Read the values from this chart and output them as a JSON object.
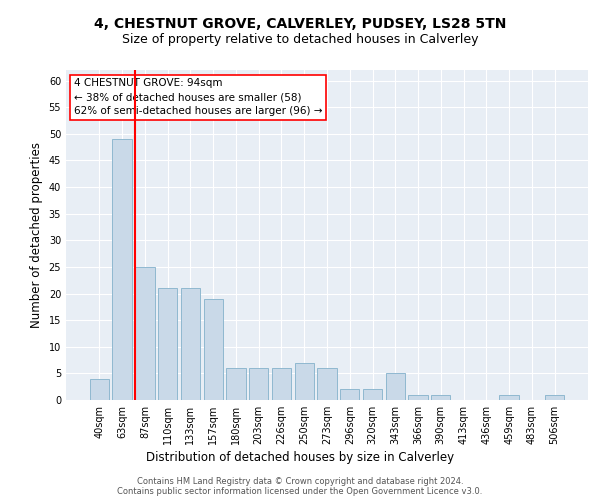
{
  "title1": "4, CHESTNUT GROVE, CALVERLEY, PUDSEY, LS28 5TN",
  "title2": "Size of property relative to detached houses in Calverley",
  "xlabel": "Distribution of detached houses by size in Calverley",
  "ylabel": "Number of detached properties",
  "annotation_line1": "4 CHESTNUT GROVE: 94sqm",
  "annotation_line2": "← 38% of detached houses are smaller (58)",
  "annotation_line3": "62% of semi-detached houses are larger (96) →",
  "categories": [
    "40sqm",
    "63sqm",
    "87sqm",
    "110sqm",
    "133sqm",
    "157sqm",
    "180sqm",
    "203sqm",
    "226sqm",
    "250sqm",
    "273sqm",
    "296sqm",
    "320sqm",
    "343sqm",
    "366sqm",
    "390sqm",
    "413sqm",
    "436sqm",
    "459sqm",
    "483sqm",
    "506sqm"
  ],
  "values": [
    4,
    49,
    25,
    21,
    21,
    19,
    6,
    6,
    6,
    7,
    6,
    2,
    2,
    5,
    1,
    1,
    0,
    0,
    1,
    0,
    1
  ],
  "bar_color": "#c9d9e8",
  "bar_edge_color": "#8fb8d0",
  "red_line_index": 2,
  "bar_width": 0.85,
  "ylim": [
    0,
    62
  ],
  "yticks": [
    0,
    5,
    10,
    15,
    20,
    25,
    30,
    35,
    40,
    45,
    50,
    55,
    60
  ],
  "bg_color": "#e8eef5",
  "grid_color": "#ffffff",
  "footer1": "Contains HM Land Registry data © Crown copyright and database right 2024.",
  "footer2": "Contains public sector information licensed under the Open Government Licence v3.0."
}
